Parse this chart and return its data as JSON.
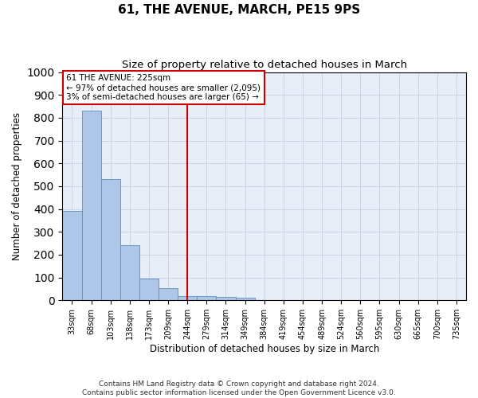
{
  "title": "61, THE AVENUE, MARCH, PE15 9PS",
  "subtitle": "Size of property relative to detached houses in March",
  "xlabel": "Distribution of detached houses by size in March",
  "ylabel": "Number of detached properties",
  "bar_values": [
    390,
    830,
    530,
    242,
    97,
    53,
    20,
    18,
    15,
    10,
    0,
    0,
    0,
    0,
    0,
    0,
    0,
    0,
    0,
    0,
    0
  ],
  "bar_labels": [
    "33sqm",
    "68sqm",
    "103sqm",
    "138sqm",
    "173sqm",
    "209sqm",
    "244sqm",
    "279sqm",
    "314sqm",
    "349sqm",
    "384sqm",
    "419sqm",
    "454sqm",
    "489sqm",
    "524sqm",
    "560sqm",
    "595sqm",
    "630sqm",
    "665sqm",
    "700sqm",
    "735sqm"
  ],
  "bar_color": "#aec6e8",
  "bar_edge_color": "#5a8fc2",
  "vline_x": 6.0,
  "vline_color": "#cc0000",
  "annotation_box_text": "61 THE AVENUE: 225sqm\n← 97% of detached houses are smaller (2,095)\n3% of semi-detached houses are larger (65) →",
  "annotation_box_color": "#cc0000",
  "ylim": [
    0,
    1000
  ],
  "yticks": [
    0,
    100,
    200,
    300,
    400,
    500,
    600,
    700,
    800,
    900,
    1000
  ],
  "grid_color": "#c8d4e8",
  "background_color": "#e8eef8",
  "footnote": "Contains HM Land Registry data © Crown copyright and database right 2024.\nContains public sector information licensed under the Open Government Licence v3.0.",
  "n_bars": 21,
  "fig_width": 6.0,
  "fig_height": 5.0,
  "dpi": 100
}
